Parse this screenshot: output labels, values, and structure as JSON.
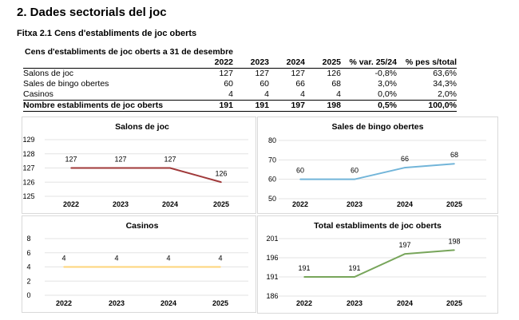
{
  "heading": "2. Dades sectorials del joc",
  "subheading": "Fitxa 2.1 Cens d'establiments de joc oberts",
  "table": {
    "title": "Cens d'establiments de joc oberts a 31 de desembre",
    "headers": [
      "",
      "2022",
      "2023",
      "2024",
      "2025",
      "% var. 25/24",
      "% pes s/total"
    ],
    "rows": [
      [
        "Salons de joc",
        "127",
        "127",
        "127",
        "126",
        "-0,8%",
        "63,6%"
      ],
      [
        "Sales de bingo obertes",
        "60",
        "60",
        "66",
        "68",
        "3,0%",
        "34,3%"
      ],
      [
        "Casinos",
        "4",
        "4",
        "4",
        "4",
        "0,0%",
        "2,0%"
      ]
    ],
    "total": [
      "Nombre establiments  de joc oberts",
      "191",
      "191",
      "197",
      "198",
      "0,5%",
      "100,0%"
    ]
  },
  "chart_data": [
    {
      "type": "line",
      "title": "Salons de joc",
      "categories": [
        "2022",
        "2023",
        "2024",
        "2025"
      ],
      "values": [
        127,
        127,
        127,
        126
      ],
      "ylim": [
        125,
        129
      ],
      "yticks": [
        125,
        126,
        127,
        128,
        129
      ],
      "color": "#a0393a",
      "grid": true
    },
    {
      "type": "line",
      "title": "Sales de bingo obertes",
      "categories": [
        "2022",
        "2023",
        "2024",
        "2025"
      ],
      "values": [
        60,
        60,
        66,
        68
      ],
      "ylim": [
        50,
        80
      ],
      "yticks": [
        50,
        60,
        70,
        80
      ],
      "color": "#72b5d9",
      "grid": true
    },
    {
      "type": "line",
      "title": "Casinos",
      "categories": [
        "2022",
        "2023",
        "2024",
        "2025"
      ],
      "values": [
        4,
        4,
        4,
        4
      ],
      "ylim": [
        0,
        8
      ],
      "yticks": [
        0,
        2,
        4,
        6,
        8
      ],
      "color": "#fdd47a",
      "grid": true
    },
    {
      "type": "line",
      "title": "Total establiments de joc oberts",
      "categories": [
        "2022",
        "2023",
        "2024",
        "2025"
      ],
      "values": [
        191,
        191,
        197,
        198
      ],
      "ylim": [
        186,
        201
      ],
      "yticks": [
        186,
        191,
        196,
        201
      ],
      "color": "#77a55a",
      "grid": true
    }
  ]
}
